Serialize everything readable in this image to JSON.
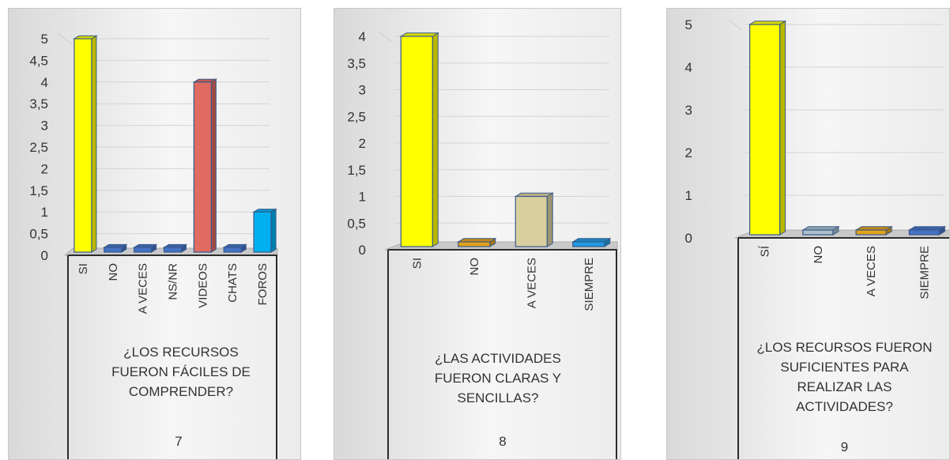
{
  "chart_data": [
    {
      "type": "bar",
      "categories": [
        "SI",
        "NO",
        "A VECES",
        "NS/NR",
        "VIDEOS",
        "CHATS",
        "FOROS"
      ],
      "values": [
        5,
        0,
        0,
        0,
        4,
        0,
        1
      ],
      "bar_colors": [
        "#ffff00",
        "#4472c4",
        "#4472c4",
        "#4472c4",
        "#e06b61",
        "#4472c4",
        "#00b0f0"
      ],
      "ylim": [
        0,
        5
      ],
      "yticks": [
        "0",
        "0,5",
        "1",
        "1,5",
        "2",
        "2,5",
        "3",
        "3,5",
        "4",
        "4,5",
        "5"
      ],
      "grid": true,
      "xlabel": "¿LOS RECURSOS FUERON FÁCILES DE COMPRENDER?",
      "group_label": "7"
    },
    {
      "type": "bar",
      "categories": [
        "SI",
        "NO",
        "A VECES",
        "SIEMPRE"
      ],
      "values": [
        4,
        0,
        1,
        0
      ],
      "bar_colors": [
        "#ffff00",
        "#e3a21a",
        "#d9cf9f",
        "#1e9be0"
      ],
      "ylim": [
        0,
        4
      ],
      "yticks": [
        "0",
        "0,5",
        "1",
        "1,5",
        "2",
        "2,5",
        "3",
        "3,5",
        "4"
      ],
      "grid": true,
      "xlabel": "¿LAS ACTIVIDADES FUERON CLARAS Y SENCILLAS?",
      "group_label": "8"
    },
    {
      "type": "bar",
      "categories": [
        "SÍ",
        "NO",
        "A VECES",
        "SIEMPRE"
      ],
      "values": [
        5,
        0,
        0,
        0
      ],
      "bar_colors": [
        "#ffff00",
        "#a9bfc9",
        "#e3a21a",
        "#4472c4"
      ],
      "ylim": [
        0,
        5
      ],
      "yticks": [
        "0",
        "1",
        "2",
        "3",
        "4",
        "5"
      ],
      "grid": true,
      "xlabel": "¿LOS RECURSOS FUERON SUFICIENTES PARA REALIZAR LAS ACTIVIDADES?",
      "group_label": "9"
    }
  ]
}
